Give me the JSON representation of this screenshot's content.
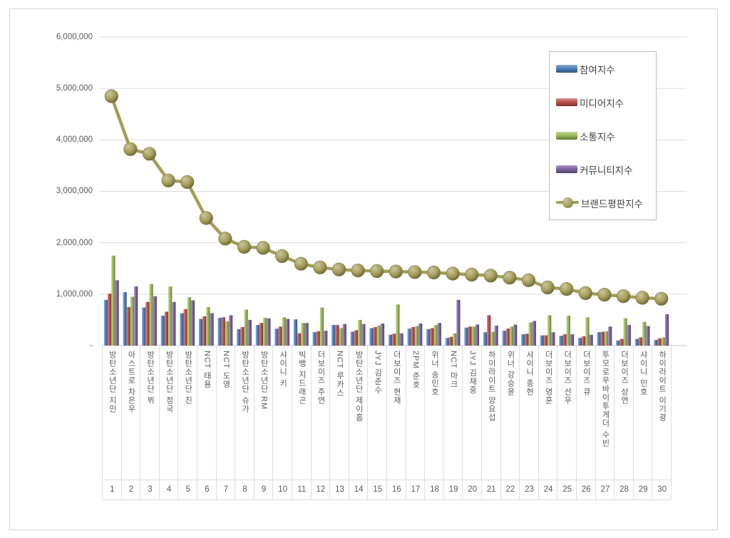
{
  "page": {
    "background": "#ffffff",
    "frame_border": "#d6d6d6"
  },
  "legend": {
    "position": "upper-right",
    "items": [
      {
        "key": "participation",
        "label": "참여지수",
        "type": "bar",
        "color": "#4F81BD"
      },
      {
        "key": "media",
        "label": "미디어지수",
        "type": "bar",
        "color": "#C0504D"
      },
      {
        "key": "communication",
        "label": "소통지수",
        "type": "bar",
        "color": "#9BBB59"
      },
      {
        "key": "community",
        "label": "커뮤니티지수",
        "type": "bar",
        "color": "#8064A2"
      },
      {
        "key": "brand",
        "label": "브랜드평판지수",
        "type": "line",
        "color": "#A49D58"
      }
    ]
  },
  "chart_data": {
    "type": "combo-bar-line",
    "title": "",
    "grid": true,
    "legend_position": "upper-right",
    "categories": [
      "방탄소년단 지민",
      "아스트로 차은우",
      "방탄소년단 뷔",
      "방탄소년단 정국",
      "방탄소년단 진",
      "NCT 태용",
      "NCT 도영",
      "방탄소년단 슈가",
      "방탄소년단 RM",
      "샤이니 키",
      "빅뱅 지드래곤",
      "더보이즈 주연",
      "NCT 루카스",
      "방탄소년단 제이홉",
      "JYJ 김준수",
      "더보이즈 현재",
      "2PM 준호",
      "위너 송민호",
      "NCT 마크",
      "JYJ 김재중",
      "하이라이트 양요섭",
      "위너 강승윤",
      "샤이니 종현",
      "더보이즈 영훈",
      "더보이즈 선우",
      "더보이즈 큐",
      "투모로우바이투게더 수빈",
      "더보이즈 상연",
      "샤이니 민호",
      "하이라이트 이기광"
    ],
    "ranks": [
      "1",
      "2",
      "3",
      "4",
      "5",
      "6",
      "7",
      "8",
      "9",
      "10",
      "11",
      "12",
      "13",
      "14",
      "15",
      "16",
      "17",
      "18",
      "19",
      "20",
      "21",
      "22",
      "23",
      "24",
      "25",
      "26",
      "27",
      "28",
      "29",
      "30"
    ],
    "series": [
      {
        "key": "participation",
        "name": "참여지수",
        "type": "bar",
        "color": "#4F81BD",
        "values": [
          890000,
          1040000,
          740000,
          580000,
          630000,
          520000,
          540000,
          320000,
          400000,
          330000,
          510000,
          260000,
          400000,
          270000,
          340000,
          210000,
          330000,
          320000,
          150000,
          350000,
          260000,
          290000,
          220000,
          200000,
          190000,
          150000,
          260000,
          100000,
          130000,
          110000
        ]
      },
      {
        "key": "media",
        "name": "미디어지수",
        "type": "bar",
        "color": "#C0504D",
        "values": [
          1010000,
          750000,
          850000,
          660000,
          710000,
          570000,
          550000,
          360000,
          440000,
          370000,
          240000,
          280000,
          400000,
          300000,
          360000,
          230000,
          360000,
          340000,
          170000,
          370000,
          590000,
          330000,
          230000,
          200000,
          220000,
          180000,
          270000,
          130000,
          160000,
          140000
        ]
      },
      {
        "key": "communication",
        "name": "소통지수",
        "type": "bar",
        "color": "#9BBB59",
        "values": [
          1750000,
          950000,
          1200000,
          1150000,
          940000,
          750000,
          470000,
          700000,
          540000,
          550000,
          440000,
          740000,
          340000,
          500000,
          390000,
          800000,
          380000,
          400000,
          240000,
          370000,
          270000,
          370000,
          450000,
          590000,
          580000,
          550000,
          280000,
          530000,
          460000,
          160000
        ]
      },
      {
        "key": "community",
        "name": "커뮤니티지수",
        "type": "bar",
        "color": "#8064A2",
        "values": [
          1270000,
          1150000,
          960000,
          850000,
          880000,
          630000,
          590000,
          500000,
          530000,
          520000,
          440000,
          290000,
          420000,
          420000,
          430000,
          240000,
          430000,
          440000,
          890000,
          410000,
          390000,
          410000,
          480000,
          260000,
          220000,
          210000,
          370000,
          400000,
          380000,
          610000
        ]
      },
      {
        "key": "brand",
        "name": "브랜드평판지수",
        "type": "line",
        "color": "#A49D58",
        "values": [
          4850000,
          3820000,
          3730000,
          3210000,
          3180000,
          2480000,
          2080000,
          1920000,
          1900000,
          1740000,
          1590000,
          1520000,
          1480000,
          1460000,
          1450000,
          1440000,
          1430000,
          1420000,
          1400000,
          1380000,
          1360000,
          1320000,
          1270000,
          1130000,
          1100000,
          1020000,
          990000,
          960000,
          930000,
          910000
        ]
      }
    ],
    "y_axis": {
      "min": 0,
      "max": 6000000,
      "tick_interval": 1000000,
      "ticks": [
        {
          "value": 0,
          "label": "-"
        },
        {
          "value": 1000000,
          "label": "1,000,000"
        },
        {
          "value": 2000000,
          "label": "2,000,000"
        },
        {
          "value": 3000000,
          "label": "3,000,000"
        },
        {
          "value": 4000000,
          "label": "4,000,000"
        },
        {
          "value": 5000000,
          "label": "5,000,000"
        },
        {
          "value": 6000000,
          "label": "6,000,000"
        }
      ]
    }
  }
}
